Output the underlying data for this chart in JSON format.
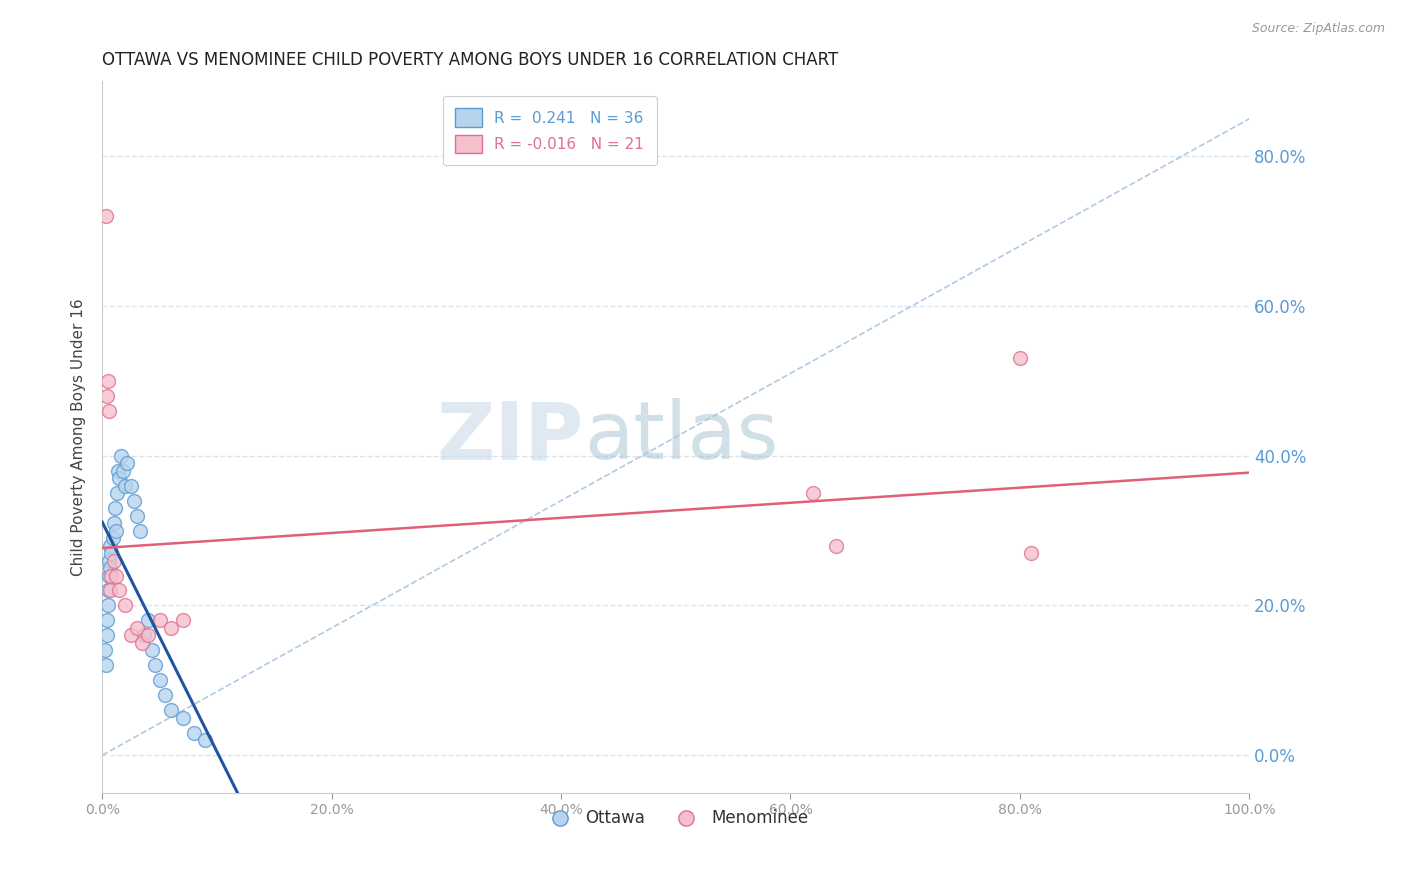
{
  "title": "OTTAWA VS MENOMINEE CHILD POVERTY AMONG BOYS UNDER 16 CORRELATION CHART",
  "source": "Source: ZipAtlas.com",
  "ylabel": "Child Poverty Among Boys Under 16",
  "xlim": [
    0.0,
    1.0
  ],
  "ylim": [
    -0.05,
    0.9
  ],
  "yticks": [
    0.0,
    0.2,
    0.4,
    0.6,
    0.8
  ],
  "xticks": [
    0.0,
    0.2,
    0.4,
    0.6,
    0.8,
    1.0
  ],
  "ottawa_x": [
    0.002,
    0.003,
    0.004,
    0.004,
    0.005,
    0.005,
    0.006,
    0.006,
    0.007,
    0.007,
    0.008,
    0.009,
    0.01,
    0.011,
    0.012,
    0.013,
    0.014,
    0.015,
    0.016,
    0.018,
    0.02,
    0.022,
    0.025,
    0.028,
    0.03,
    0.033,
    0.036,
    0.04,
    0.043,
    0.046,
    0.05,
    0.055,
    0.06,
    0.07,
    0.08,
    0.09
  ],
  "ottawa_y": [
    0.14,
    0.12,
    0.16,
    0.18,
    0.2,
    0.22,
    0.24,
    0.26,
    0.28,
    0.25,
    0.27,
    0.29,
    0.31,
    0.33,
    0.3,
    0.35,
    0.38,
    0.37,
    0.4,
    0.38,
    0.36,
    0.39,
    0.36,
    0.34,
    0.32,
    0.3,
    0.16,
    0.18,
    0.14,
    0.12,
    0.1,
    0.08,
    0.06,
    0.05,
    0.03,
    0.02
  ],
  "menominee_x": [
    0.003,
    0.004,
    0.005,
    0.006,
    0.007,
    0.008,
    0.01,
    0.012,
    0.015,
    0.02,
    0.025,
    0.03,
    0.035,
    0.04,
    0.05,
    0.06,
    0.07,
    0.62,
    0.64,
    0.8,
    0.81
  ],
  "menominee_y": [
    0.72,
    0.48,
    0.5,
    0.46,
    0.22,
    0.24,
    0.26,
    0.24,
    0.22,
    0.2,
    0.16,
    0.17,
    0.15,
    0.16,
    0.18,
    0.17,
    0.18,
    0.35,
    0.28,
    0.53,
    0.27
  ],
  "ottawa_color": "#b8d4ed",
  "ottawa_edge_color": "#5b9bd5",
  "menominee_color": "#f4c0cc",
  "menominee_edge_color": "#e07090",
  "ottawa_trend_color": "#2255a0",
  "menominee_trend_color": "#e0607a",
  "diag_line_color": "#a8c4e0",
  "grid_color": "#d8e4f0",
  "background_color": "#ffffff",
  "right_axis_color": "#5b9bd5",
  "ottawa_R": 0.241,
  "ottawa_N": 36,
  "menominee_R": -0.016,
  "menominee_N": 21,
  "marker_size": 100,
  "watermark_zip": "ZIP",
  "watermark_atlas": "atlas",
  "watermark_color_zip": "#c8d8e8",
  "watermark_color_atlas": "#9ab8c8"
}
